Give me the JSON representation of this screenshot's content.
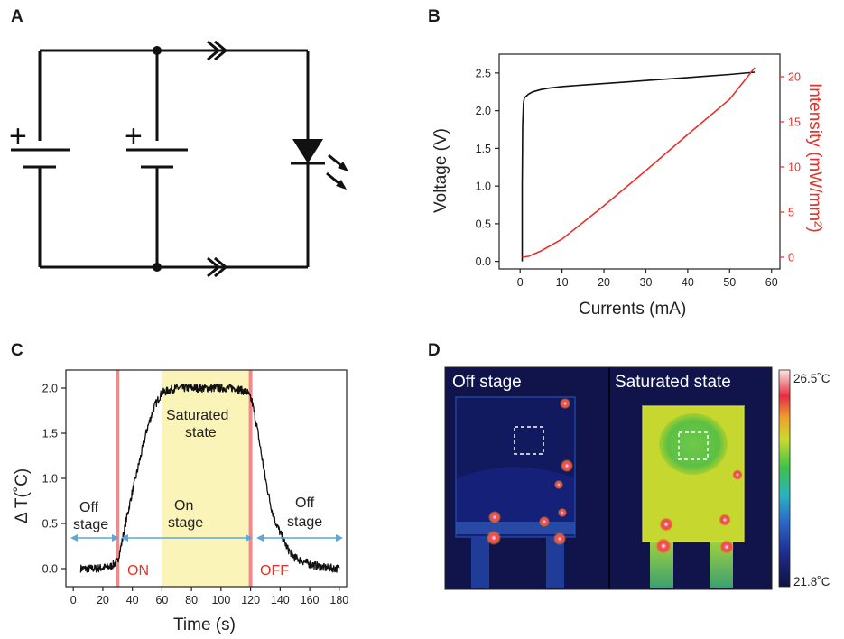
{
  "panel_labels": {
    "a": "A",
    "b": "B",
    "c": "C",
    "d": "D"
  },
  "circuit": {
    "battery_sign": "+",
    "current_marker": "double-chevron-right",
    "component": "LED with emission arrows"
  },
  "chart_data": [
    {
      "type": "line",
      "panel": "B",
      "xlabel": "Currents (mA)",
      "ylabel": "Voltage (V)",
      "y2label": "Intensity (mW/mm²)",
      "xlim": [
        -5,
        62
      ],
      "ylim": [
        -0.1,
        2.75
      ],
      "y2lim": [
        -1.3,
        22.5
      ],
      "x_ticks": [
        "0",
        "10",
        "20",
        "30",
        "40",
        "50",
        "60"
      ],
      "y_ticks": [
        "0.0",
        "0.5",
        "1.0",
        "1.5",
        "2.0",
        "2.5"
      ],
      "y2_ticks": [
        "0",
        "5",
        "10",
        "15",
        "20"
      ],
      "series": [
        {
          "axis": "left",
          "color": "#111111",
          "x": [
            0.5,
            0.5,
            0.6,
            0.8,
            1,
            2,
            3,
            5,
            7,
            10,
            15,
            20,
            25,
            30,
            35,
            40,
            45,
            50,
            56
          ],
          "y": [
            0.0,
            1.0,
            1.8,
            2.1,
            2.17,
            2.22,
            2.25,
            2.28,
            2.3,
            2.32,
            2.34,
            2.36,
            2.38,
            2.4,
            2.42,
            2.44,
            2.46,
            2.48,
            2.51
          ]
        },
        {
          "axis": "right",
          "color": "#e8302a",
          "x": [
            0.5,
            2,
            5,
            10,
            20,
            30,
            40,
            50,
            56
          ],
          "y": [
            0.0,
            0.1,
            0.7,
            2.0,
            5.7,
            9.6,
            13.6,
            17.5,
            21.0
          ]
        }
      ]
    },
    {
      "type": "line",
      "panel": "C",
      "xlabel": "Time (s)",
      "ylabel": "Δ T(˚C)",
      "xlim": [
        -5,
        185
      ],
      "ylim": [
        -0.2,
        2.2
      ],
      "x_ticks": [
        "0",
        "20",
        "40",
        "60",
        "80",
        "100",
        "120",
        "140",
        "160",
        "180"
      ],
      "y_ticks": [
        "0.0",
        "0.5",
        "1.0",
        "1.5",
        "2.0"
      ],
      "series": [
        {
          "color": "#111111",
          "x": [
            5,
            10,
            15,
            20,
            25,
            30,
            33,
            36,
            40,
            45,
            50,
            55,
            60,
            70,
            80,
            90,
            100,
            110,
            118,
            121,
            124,
            127,
            130,
            133,
            136,
            140,
            145,
            150,
            160,
            170,
            180
          ],
          "y": [
            0.0,
            0.0,
            0.0,
            0.01,
            0.02,
            0.08,
            0.3,
            0.55,
            0.85,
            1.2,
            1.55,
            1.8,
            1.95,
            2.0,
            2.0,
            2.0,
            2.0,
            2.0,
            1.95,
            1.85,
            1.6,
            1.3,
            1.0,
            0.75,
            0.55,
            0.4,
            0.22,
            0.12,
            0.05,
            0.01,
            0.0
          ]
        }
      ],
      "annotations": {
        "off_left": [
          "Off",
          "stage"
        ],
        "on": [
          "On",
          "stage"
        ],
        "off_right": [
          "Off",
          "stage"
        ],
        "saturated": [
          "Saturated",
          "state"
        ],
        "on_marker": "ON",
        "off_marker": "OFF"
      },
      "on_time": 30,
      "off_time": 120,
      "saturated_range": [
        60,
        120
      ]
    }
  ],
  "thermal": {
    "left_label": "Off stage",
    "right_label": "Saturated state",
    "colorbar_max": "26.5˚C",
    "colorbar_min": "21.8˚C"
  },
  "colors": {
    "red_marker": "#f08a8a",
    "red_text": "#e8302a",
    "saturated_fill": "#fbf4b8",
    "arrow_blue": "#5ea8d8"
  }
}
